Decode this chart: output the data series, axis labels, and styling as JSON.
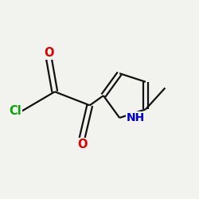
{
  "background_color": "#f2f2ee",
  "bond_color": "#111111",
  "atom_colors": {
    "O": "#dd0000",
    "N": "#0000cc",
    "Cl": "#00aa00",
    "C": "#111111"
  },
  "figsize": [
    2.5,
    2.5
  ],
  "dpi": 100,
  "font_size": 10.5,
  "bond_lw": 1.6,
  "xlim": [
    -0.5,
    4.5
  ],
  "ylim": [
    -1.5,
    3.0
  ]
}
